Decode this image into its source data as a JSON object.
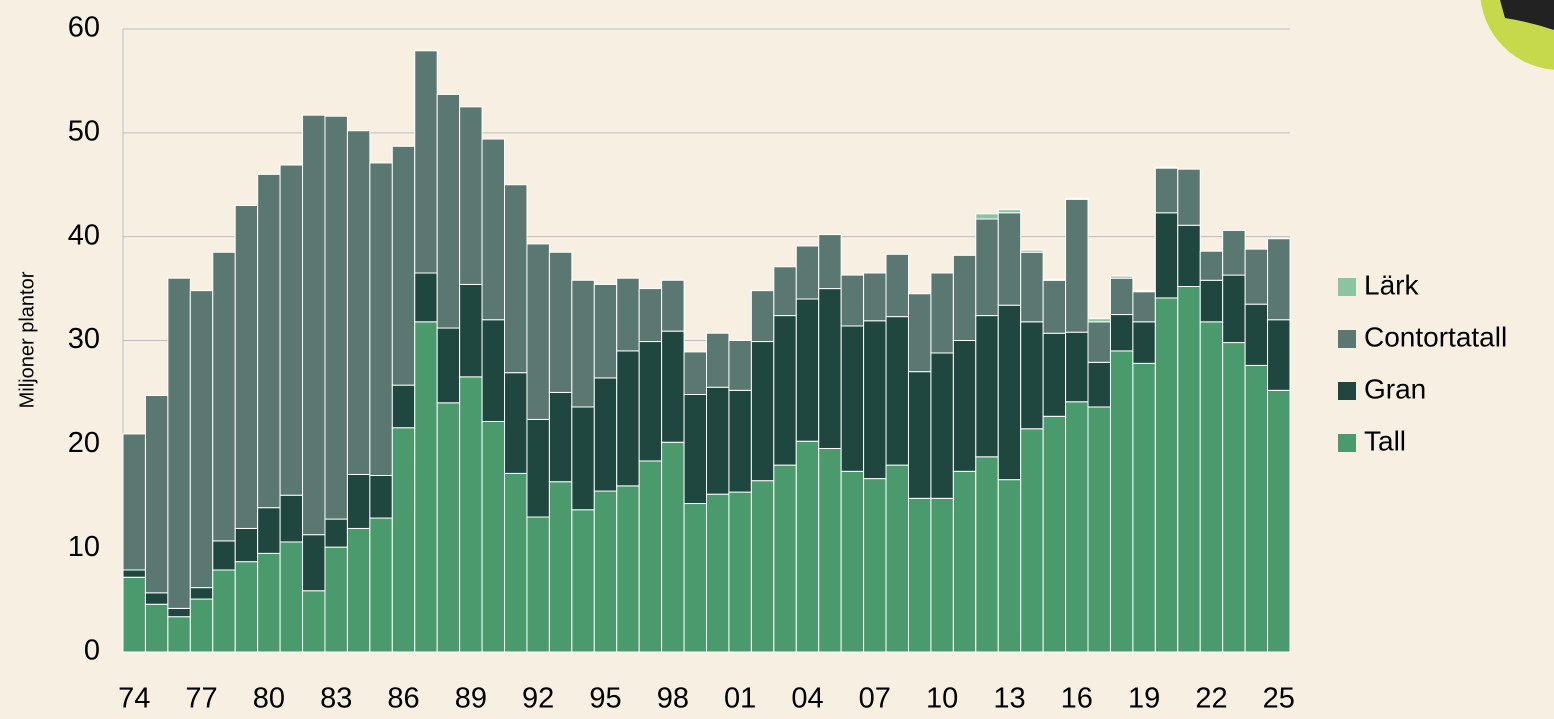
{
  "chart_data": {
    "type": "stacked_bar",
    "y_label": "Miljoner plantor",
    "categories": [
      "74",
      null,
      null,
      "77",
      null,
      null,
      "80",
      null,
      null,
      "83",
      null,
      null,
      "86",
      null,
      null,
      "89",
      null,
      null,
      "92",
      null,
      null,
      "95",
      null,
      null,
      "98",
      null,
      null,
      "01",
      null,
      null,
      "04",
      null,
      null,
      "07",
      null,
      null,
      "10",
      null,
      null,
      "13",
      null,
      null,
      "16",
      null,
      null,
      "19",
      null,
      null,
      "22",
      null,
      null,
      "25"
    ],
    "series": [
      {
        "name": "Tall",
        "color": "#4a9a6d",
        "values": [
          7.2,
          4.6,
          3.4,
          5.1,
          7.9,
          8.7,
          9.5,
          10.6,
          5.9,
          10.1,
          11.9,
          12.9,
          21.6,
          31.8,
          24.0,
          26.5,
          22.2,
          17.2,
          13.0,
          16.4,
          13.7,
          15.5,
          16.0,
          18.4,
          20.2,
          14.3,
          15.2,
          15.4,
          16.5,
          18.0,
          20.3,
          19.6,
          17.4,
          16.7,
          18.0,
          14.8,
          14.8,
          17.4,
          18.8,
          16.6,
          21.5,
          22.7,
          24.1,
          23.6,
          29.0,
          27.8,
          34.1,
          35.2,
          31.8,
          29.8,
          27.6,
          25.2
        ]
      },
      {
        "name": "Gran",
        "color": "#1f4740",
        "values": [
          0.7,
          1.1,
          0.8,
          1.1,
          2.8,
          3.2,
          4.4,
          4.5,
          5.4,
          2.7,
          5.2,
          4.1,
          4.1,
          4.7,
          7.2,
          8.9,
          9.8,
          9.7,
          9.4,
          8.6,
          9.9,
          10.9,
          13.0,
          11.5,
          10.7,
          10.5,
          10.3,
          9.8,
          13.4,
          14.4,
          13.7,
          15.4,
          14.0,
          15.2,
          14.3,
          12.2,
          14.0,
          12.6,
          13.6,
          16.8,
          10.3,
          8.0,
          6.7,
          4.3,
          3.5,
          4.0,
          8.2,
          5.9,
          4.0,
          6.5,
          5.9,
          6.8
        ]
      },
      {
        "name": "Contortatall",
        "color": "#5a7771",
        "values": [
          13.1,
          19.0,
          31.8,
          28.6,
          27.8,
          31.1,
          32.1,
          31.8,
          40.4,
          38.8,
          33.1,
          30.1,
          23.0,
          21.4,
          22.5,
          17.1,
          17.4,
          18.1,
          16.9,
          13.5,
          12.2,
          9.0,
          7.0,
          5.1,
          4.9,
          4.1,
          5.2,
          4.8,
          4.9,
          4.7,
          5.1,
          5.2,
          4.9,
          4.6,
          6.0,
          7.5,
          7.7,
          8.2,
          9.3,
          8.9,
          6.7,
          5.1,
          12.8,
          3.9,
          3.5,
          2.9,
          4.3,
          5.4,
          2.8,
          4.3,
          5.3,
          7.8
        ]
      },
      {
        "name": "Lärk",
        "color": "#8ac4a0",
        "values": [
          0,
          0,
          0,
          0,
          0,
          0,
          0,
          0,
          0,
          0,
          0,
          0,
          0,
          0,
          0,
          0,
          0,
          0,
          0,
          0,
          0,
          0,
          0,
          0,
          0,
          0,
          0,
          0,
          0,
          0,
          0,
          0,
          0,
          0,
          0,
          0,
          0,
          0,
          0.5,
          0.3,
          0.2,
          0.1,
          0.1,
          0.3,
          0.2,
          0.1,
          0.1,
          0,
          0,
          0,
          0,
          0
        ]
      }
    ],
    "ylim": [
      0,
      60
    ],
    "yticks": [
      0,
      10,
      20,
      30,
      40,
      50,
      60
    ],
    "grid": true,
    "legend": "right"
  }
}
